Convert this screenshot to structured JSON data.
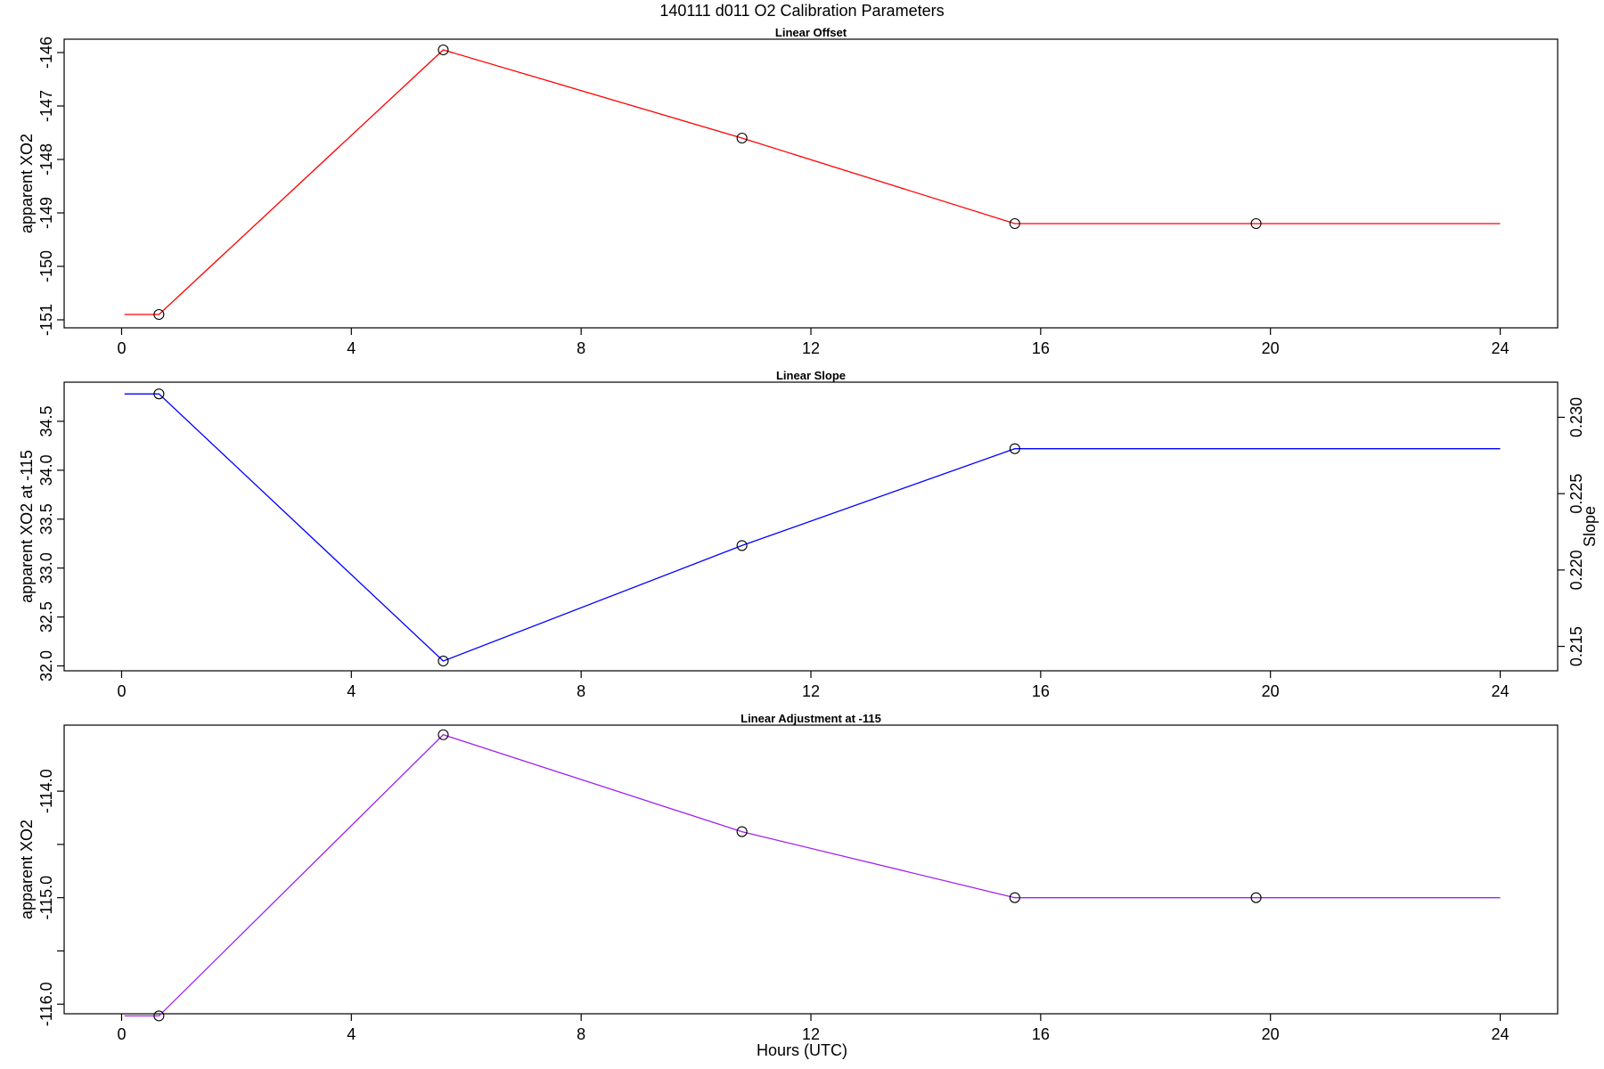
{
  "figure": {
    "main_title": "140111   d011   O2 Calibration Parameters",
    "xlabel": "Hours (UTC)"
  },
  "chart_data": [
    {
      "type": "line",
      "title": "Linear Offset",
      "xlabel": "",
      "ylabel": "apparent XO2",
      "xlim": [
        -1.0,
        25.0
      ],
      "ylim": [
        -151.15,
        -145.75
      ],
      "x_ticks": [
        0,
        4,
        8,
        12,
        16,
        20,
        24
      ],
      "x_tick_labels": [
        "0",
        "4",
        "8",
        "12",
        "16",
        "20",
        "24"
      ],
      "y_ticks": [
        -146,
        -147,
        -148,
        -149,
        -150,
        -151
      ],
      "y_tick_labels": [
        "-146",
        "-147",
        "-148",
        "-149",
        "-150",
        "-151"
      ],
      "grid": false,
      "line_color": "#ff0000",
      "line_x": [
        0.05,
        0.65,
        5.6,
        10.8,
        15.55,
        19.75,
        24.0
      ],
      "line_y": [
        -150.9,
        -150.9,
        -145.95,
        -147.6,
        -149.2,
        -149.2,
        -149.2
      ],
      "point_x": [
        0.65,
        5.6,
        10.8,
        15.55,
        19.75
      ],
      "point_y": [
        -150.9,
        -145.95,
        -147.6,
        -149.2,
        -149.2
      ]
    },
    {
      "type": "line",
      "title": "Linear Slope",
      "xlabel": "",
      "ylabel": "apparent XO2 at -115",
      "ylabel_right": "Slope",
      "xlim": [
        -1.0,
        25.0
      ],
      "ylim": [
        31.95,
        34.9
      ],
      "ylim_right": [
        0.2134,
        0.2323
      ],
      "x_ticks": [
        0,
        4,
        8,
        12,
        16,
        20,
        24
      ],
      "x_tick_labels": [
        "0",
        "4",
        "8",
        "12",
        "16",
        "20",
        "24"
      ],
      "y_ticks": [
        32.0,
        32.5,
        33.0,
        33.5,
        34.0,
        34.5
      ],
      "y_tick_labels": [
        "32.0",
        "32.5",
        "33.0",
        "33.5",
        "34.0",
        "34.5"
      ],
      "y_ticks_right": [
        0.215,
        0.22,
        0.225,
        0.23
      ],
      "y_tick_labels_right": [
        "0.215",
        "0.220",
        "0.225",
        "0.230"
      ],
      "grid": false,
      "line_color": "#0000ff",
      "line_x": [
        0.05,
        0.65,
        5.6,
        10.8,
        15.55,
        24.0
      ],
      "line_y": [
        34.78,
        34.78,
        32.05,
        33.23,
        34.22,
        34.22
      ],
      "point_x": [
        0.65,
        5.6,
        10.8,
        15.55
      ],
      "point_y": [
        34.78,
        32.05,
        33.23,
        34.22
      ]
    },
    {
      "type": "line",
      "title": "Linear Adjustment at -115",
      "xlabel": "Hours (UTC)",
      "ylabel": "apparent XO2",
      "xlim": [
        -1.0,
        25.0
      ],
      "ylim": [
        -116.09,
        -113.38
      ],
      "x_ticks": [
        0,
        4,
        8,
        12,
        16,
        20,
        24
      ],
      "x_tick_labels": [
        "0",
        "4",
        "8",
        "12",
        "16",
        "20",
        "24"
      ],
      "y_ticks": [
        -114.0,
        -114.5,
        -115.0,
        -115.5,
        -116.0
      ],
      "y_tick_labels": [
        "-114.0",
        "",
        "-115.0",
        "",
        "-116.0"
      ],
      "grid": false,
      "line_color": "#a020f0",
      "line_x": [
        0.05,
        0.65,
        5.6,
        10.8,
        15.55,
        19.75,
        24.0
      ],
      "line_y": [
        -116.11,
        -116.11,
        -113.47,
        -114.38,
        -115.0,
        -115.0,
        -115.0
      ],
      "point_x": [
        0.65,
        5.6,
        10.8,
        15.55,
        19.75
      ],
      "point_y": [
        -116.11,
        -113.47,
        -114.38,
        -115.0,
        -115.0
      ]
    }
  ]
}
